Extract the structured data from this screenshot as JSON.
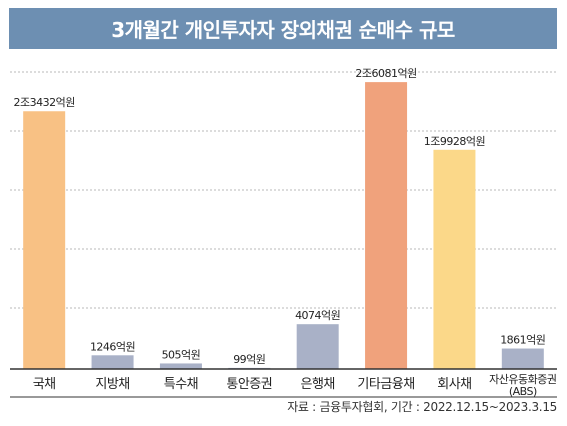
{
  "header": {
    "title": "3개월간 개인투자자 장외채권 순매수 규모"
  },
  "source_note": "자료 : 금융투자협회, 기간 : 2022.12.15~2023.3.15",
  "colors": {
    "title_bg": "#6d8fb2",
    "bar_orange_light": "#f8c184",
    "bar_orange_dark": "#f0a27c",
    "bar_yellow": "#fbd889",
    "bar_slate": "#a9b1c7"
  },
  "chart_data": {
    "type": "bar",
    "unit": "억원",
    "categories": [
      "국채",
      "지방채",
      "특수채",
      "통안증권",
      "은행채",
      "기타금융채",
      "회사채",
      "자산유동화증권 (ABS)"
    ],
    "category_lines": [
      [
        "국채"
      ],
      [
        "지방채"
      ],
      [
        "특수채"
      ],
      [
        "통안증권"
      ],
      [
        "은행채"
      ],
      [
        "기타금융채"
      ],
      [
        "회사채"
      ],
      [
        "자산유동화증권",
        "(ABS)"
      ]
    ],
    "values": [
      23432,
      1246,
      505,
      99,
      4074,
      26081,
      19928,
      1861
    ],
    "value_labels": [
      "2조3432억원",
      "1246억원",
      "505억원",
      "99억원",
      "4074억원",
      "2조6081억원",
      "1조9928억원",
      "1861억원"
    ],
    "bar_colors": [
      "#f8c184",
      "#a9b1c7",
      "#a9b1c7",
      "#a9b1c7",
      "#a9b1c7",
      "#f0a27c",
      "#fbd889",
      "#a9b1c7"
    ],
    "ylim": [
      0,
      27000
    ],
    "grid": "dotted horizontal",
    "title": "3개월간 개인투자자 장외채권 순매수 규모",
    "xlabel": "",
    "ylabel": ""
  }
}
